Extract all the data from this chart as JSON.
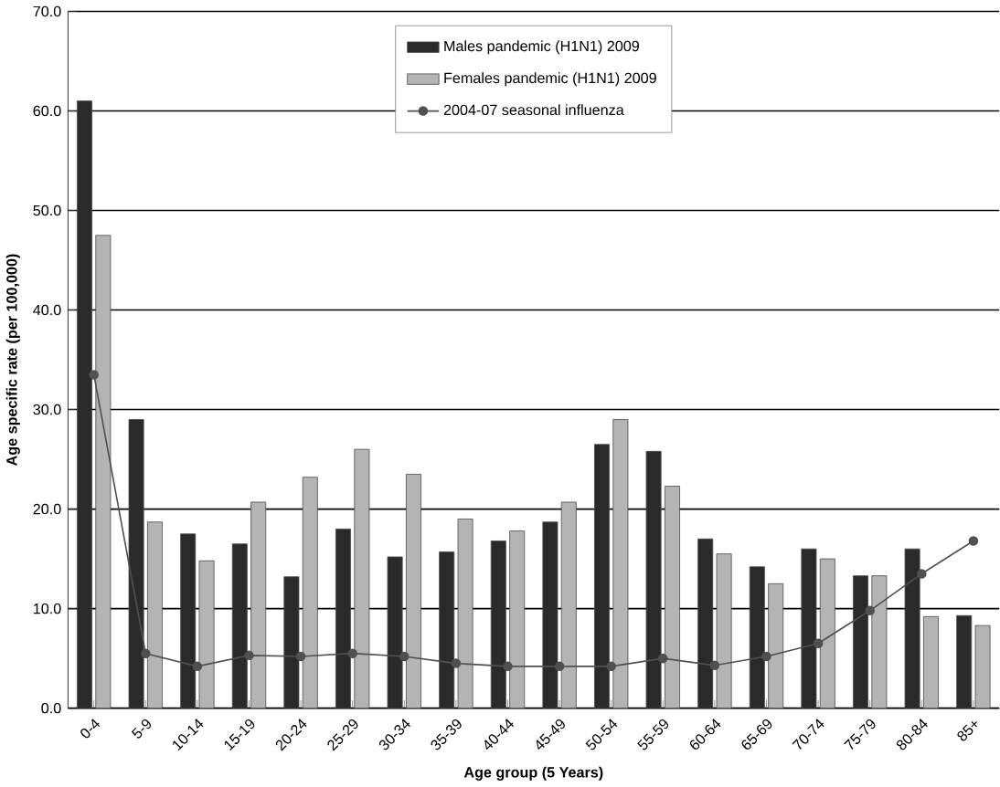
{
  "chart_data": {
    "type": "bar",
    "xlabel": "Age group (5 Years)",
    "ylabel": "Age specific rate (per 100,000)",
    "categories": [
      "0-4",
      "5-9",
      "10-14",
      "15-19",
      "20-24",
      "25-29",
      "30-34",
      "35-39",
      "40-44",
      "45-49",
      "50-54",
      "55-59",
      "60-64",
      "65-69",
      "70-74",
      "75-79",
      "80-84",
      "85+"
    ],
    "series": [
      {
        "name": "Males pandemic (H1N1) 2009",
        "color": "#2a2a2a",
        "values": [
          61,
          29,
          17.5,
          16.5,
          13.2,
          18,
          15.2,
          15.7,
          16.8,
          18.7,
          26.5,
          25.8,
          17,
          14.2,
          16,
          13.3,
          16,
          9.3
        ]
      },
      {
        "name": "Females pandemic (H1N1) 2009",
        "color": "#b4b4b4",
        "values": [
          47.5,
          18.7,
          14.8,
          20.7,
          23.2,
          26,
          23.5,
          19,
          17.8,
          20.7,
          29,
          22.3,
          15.5,
          12.5,
          15,
          13.3,
          9.2,
          8.3
        ]
      },
      {
        "name": "2004-07 seasonal influenza",
        "type": "line",
        "marker": "circle",
        "color": "#505050",
        "values": [
          33.5,
          5.5,
          4.2,
          5.3,
          5.2,
          5.5,
          5.2,
          4.5,
          4.2,
          4.2,
          4.2,
          5,
          4.3,
          5.2,
          6.5,
          9.8,
          13.5,
          16.8
        ]
      }
    ],
    "ylim": [
      0,
      70
    ],
    "yticks": [
      {
        "value": 0,
        "label": "0.0"
      },
      {
        "value": 10,
        "label": "10.0"
      },
      {
        "value": 20,
        "label": "20.0"
      },
      {
        "value": 30,
        "label": "30.0"
      },
      {
        "value": 40,
        "label": "40.0"
      },
      {
        "value": 50,
        "label": "50.0"
      },
      {
        "value": 60,
        "label": "60.0"
      },
      {
        "value": 70,
        "label": "70.0"
      }
    ],
    "grid": "y",
    "legend": "top"
  }
}
